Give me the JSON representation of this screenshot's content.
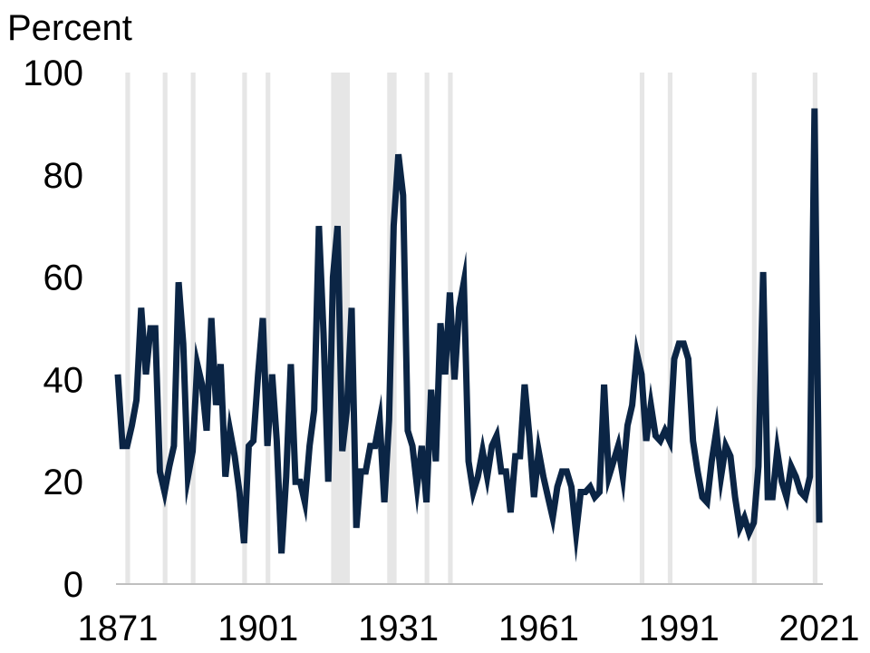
{
  "chart_data": {
    "type": "line",
    "title": "",
    "ylabel": "Percent",
    "xlabel": "",
    "ylim": [
      0,
      100
    ],
    "xlim": [
      1871,
      2022
    ],
    "yticks": [
      0,
      20,
      40,
      60,
      80,
      100
    ],
    "xticks": [
      1871,
      1901,
      1931,
      1961,
      1991,
      2021
    ],
    "line_color": "#0b2545",
    "band_color": "#e6e6e6",
    "shaded_periods": [
      [
        1873,
        1874
      ],
      [
        1881,
        1882
      ],
      [
        1887,
        1888
      ],
      [
        1898,
        1899
      ],
      [
        1903,
        1904
      ],
      [
        1917,
        1921
      ],
      [
        1929,
        1931
      ],
      [
        1937,
        1938
      ],
      [
        1942,
        1943
      ],
      [
        1983,
        1984
      ],
      [
        1989,
        1990
      ],
      [
        2007,
        2008
      ],
      [
        2020,
        2021
      ]
    ],
    "series": [
      {
        "x": [
          1871,
          1872,
          1873,
          1874,
          1875,
          1876,
          1877,
          1878,
          1879,
          1880,
          1881,
          1882,
          1883,
          1884,
          1885,
          1886,
          1887,
          1888,
          1889,
          1890,
          1891,
          1892,
          1893,
          1894,
          1895,
          1896,
          1897,
          1898,
          1899,
          1900,
          1901,
          1902,
          1903,
          1904,
          1905,
          1906,
          1907,
          1908,
          1909,
          1910,
          1911,
          1912,
          1913,
          1914,
          1915,
          1916,
          1917,
          1918,
          1919,
          1920,
          1921,
          1922,
          1923,
          1924,
          1925,
          1926,
          1927,
          1928,
          1929,
          1930,
          1931,
          1932,
          1933,
          1934,
          1935,
          1936,
          1937,
          1938,
          1939,
          1940,
          1941,
          1942,
          1943,
          1944,
          1945,
          1946,
          1947,
          1948,
          1949,
          1950,
          1951,
          1952,
          1953,
          1954,
          1955,
          1956,
          1957,
          1958,
          1959,
          1960,
          1961,
          1962,
          1963,
          1964,
          1965,
          1966,
          1967,
          1968,
          1969,
          1970,
          1971,
          1972,
          1973,
          1974,
          1975,
          1976,
          1977,
          1978,
          1979,
          1980,
          1981,
          1982,
          1983,
          1984,
          1985,
          1986,
          1987,
          1988,
          1989,
          1990,
          1991,
          1992,
          1993,
          1994,
          1995,
          1996,
          1997,
          1998,
          1999,
          2000,
          2001,
          2002,
          2003,
          2004,
          2005,
          2006,
          2007,
          2008,
          2009,
          2010,
          2011,
          2012,
          2013,
          2014,
          2015,
          2016,
          2017,
          2018,
          2019,
          2020,
          2021
        ],
        "values": [
          41,
          27,
          27,
          31,
          36,
          54,
          41,
          50,
          50,
          22,
          18,
          23,
          27,
          59,
          47,
          21,
          26,
          43,
          39,
          30,
          52,
          35,
          43,
          21,
          30,
          25,
          18,
          8,
          27,
          28,
          41,
          52,
          27,
          41,
          28,
          6,
          21,
          43,
          20,
          20,
          16,
          27,
          34,
          70,
          49,
          20,
          60,
          70,
          26,
          34,
          54,
          11,
          22,
          22,
          27,
          27,
          32,
          16,
          32,
          70,
          84,
          76,
          30,
          27,
          19,
          27,
          16,
          38,
          24,
          51,
          41,
          57,
          40,
          54,
          59,
          24,
          18,
          21,
          26,
          21,
          27,
          29,
          22,
          22,
          14,
          25,
          25,
          39,
          29,
          17,
          26,
          21,
          17,
          13,
          19,
          22,
          22,
          19,
          10,
          18,
          18,
          19,
          17,
          18,
          39,
          21,
          24,
          27,
          21,
          31,
          35,
          45,
          41,
          28,
          35,
          29,
          28,
          30,
          28,
          44,
          47,
          47,
          44,
          28,
          22,
          17,
          16,
          24,
          30,
          21,
          27,
          25,
          17,
          11,
          13,
          10,
          12,
          23,
          61,
          17,
          17,
          26,
          20,
          17,
          23,
          21,
          18,
          17,
          21,
          93,
          12
        ]
      }
    ]
  }
}
